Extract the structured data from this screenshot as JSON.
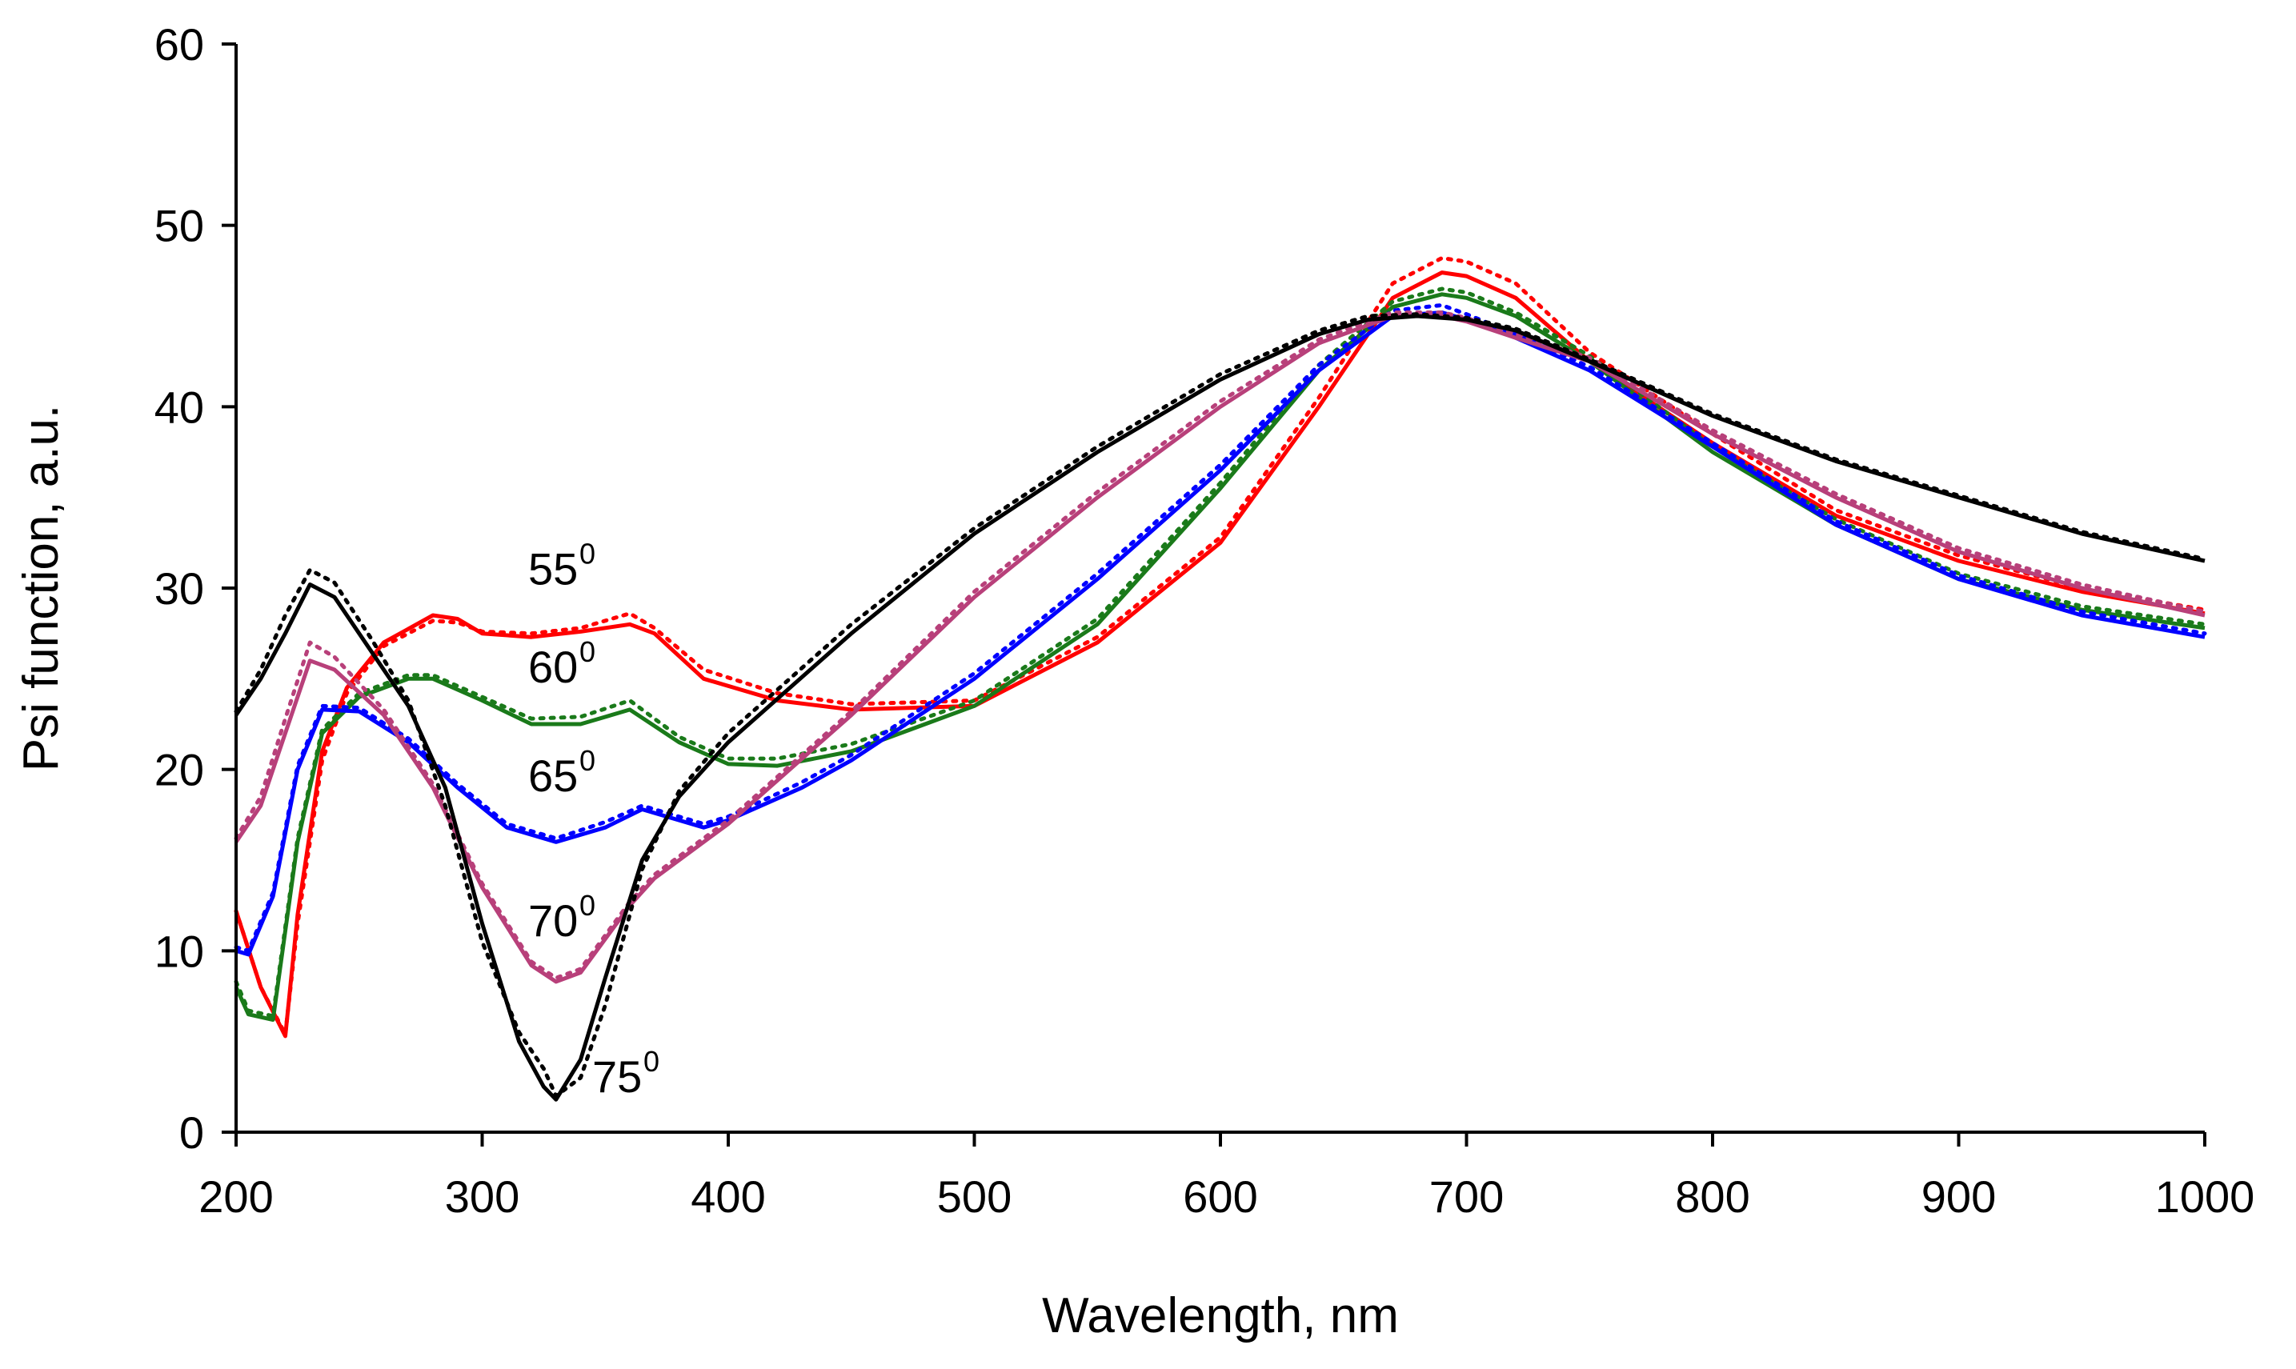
{
  "chart_data": {
    "type": "line",
    "title": "",
    "xlabel": "Wavelength, nm",
    "ylabel": "Psi function, a.u.",
    "xlim": [
      200,
      1000
    ],
    "ylim": [
      0,
      60
    ],
    "xticks": [
      200,
      300,
      400,
      500,
      600,
      700,
      800,
      900,
      1000
    ],
    "yticks": [
      0,
      10,
      20,
      30,
      40,
      50,
      60
    ],
    "grid": false,
    "legend": "none",
    "series": [
      {
        "name": "55°",
        "label": "55",
        "sup": "0",
        "color": "#ff0000",
        "x": [
          200,
          210,
          220,
          225,
          235,
          245,
          260,
          280,
          290,
          300,
          320,
          340,
          360,
          370,
          390,
          420,
          450,
          500,
          550,
          600,
          640,
          670,
          690,
          700,
          720,
          750,
          800,
          850,
          900,
          950,
          1000
        ],
        "measured": [
          12.2,
          8,
          5.3,
          12,
          21,
          24.5,
          27,
          28.5,
          28.3,
          27.5,
          27.3,
          27.6,
          28,
          27.5,
          25,
          23.8,
          23.3,
          23.5,
          27,
          32.5,
          40,
          46,
          47.4,
          47.2,
          46,
          42.5,
          38,
          34,
          31.5,
          29.8,
          28.6
        ],
        "model": [
          12.2,
          8,
          5.4,
          11.5,
          20.5,
          24.2,
          26.8,
          28.2,
          28.1,
          27.6,
          27.5,
          27.8,
          28.6,
          27.8,
          25.5,
          24.2,
          23.6,
          23.8,
          27.3,
          32.8,
          40.5,
          46.8,
          48.2,
          48,
          46.8,
          43,
          38.5,
          34.3,
          31.8,
          30,
          28.8
        ]
      },
      {
        "name": "60°",
        "label": "60",
        "sup": "0",
        "color": "#1a7a1a",
        "x": [
          200,
          205,
          215,
          225,
          235,
          250,
          270,
          280,
          300,
          320,
          340,
          360,
          380,
          400,
          420,
          450,
          500,
          550,
          600,
          640,
          670,
          690,
          700,
          720,
          750,
          800,
          850,
          900,
          950,
          1000
        ],
        "measured": [
          8,
          6.5,
          6.2,
          16,
          22,
          24,
          25,
          25,
          23.8,
          22.5,
          22.5,
          23.3,
          21.5,
          20.3,
          20.2,
          21,
          23.5,
          28,
          35.5,
          42,
          45.5,
          46.2,
          46,
          45,
          42.5,
          37.5,
          33.5,
          30.5,
          28.8,
          27.8
        ],
        "model": [
          8.3,
          6.7,
          6.4,
          16.2,
          22.2,
          24.2,
          25.2,
          25.2,
          24,
          22.8,
          22.9,
          23.8,
          21.8,
          20.6,
          20.6,
          21.4,
          23.8,
          28.3,
          35.8,
          42.3,
          45.8,
          46.5,
          46.3,
          45.2,
          42.8,
          37.8,
          33.8,
          30.8,
          29,
          28
        ]
      },
      {
        "name": "65°",
        "label": "65",
        "sup": "0",
        "color": "#0000ff",
        "x": [
          200,
          205,
          215,
          225,
          235,
          250,
          270,
          290,
          310,
          330,
          350,
          365,
          380,
          390,
          400,
          430,
          450,
          500,
          550,
          600,
          640,
          670,
          690,
          700,
          720,
          750,
          800,
          850,
          900,
          950,
          1000
        ],
        "measured": [
          10,
          9.8,
          13,
          20,
          23.3,
          23.2,
          21.5,
          19,
          16.8,
          16,
          16.8,
          17.8,
          17.2,
          16.8,
          17.2,
          19,
          20.5,
          25,
          30.5,
          36.5,
          42,
          45,
          45.2,
          44.8,
          43.8,
          42,
          37.8,
          33.5,
          30.5,
          28.5,
          27.3
        ],
        "model": [
          10.2,
          10,
          13.2,
          20.2,
          23.5,
          23.4,
          21.7,
          19.2,
          17,
          16.2,
          17.1,
          18,
          17.4,
          17,
          17.4,
          19.3,
          20.8,
          25.3,
          30.8,
          36.8,
          42.3,
          45.3,
          45.6,
          45.1,
          44,
          42.2,
          38,
          33.7,
          30.7,
          28.7,
          27.5
        ]
      },
      {
        "name": "70°",
        "label": "70",
        "sup": "0",
        "color": "#b8407a",
        "x": [
          200,
          210,
          220,
          230,
          240,
          260,
          280,
          300,
          320,
          330,
          340,
          360,
          370,
          400,
          450,
          500,
          550,
          600,
          640,
          670,
          690,
          700,
          720,
          750,
          800,
          850,
          900,
          950,
          1000
        ],
        "measured": [
          16,
          18,
          22,
          26,
          25.5,
          23,
          19,
          13.5,
          9.2,
          8.3,
          8.8,
          12.5,
          14,
          17,
          23,
          29.5,
          35,
          40,
          43.5,
          45,
          45,
          44.7,
          43.8,
          42.5,
          38.5,
          35,
          32,
          30,
          28.5
        ],
        "model": [
          16.2,
          18.5,
          22.8,
          27,
          26.2,
          23.3,
          19.2,
          13.7,
          9.4,
          8.5,
          9,
          12.7,
          14.2,
          17.2,
          23.2,
          29.8,
          35.3,
          40.3,
          43.7,
          45.2,
          45.2,
          44.9,
          44,
          42.7,
          38.7,
          35.2,
          32.2,
          30.2,
          28.7
        ]
      },
      {
        "name": "75°",
        "label": "75",
        "sup": "0",
        "color": "#000000",
        "x": [
          200,
          210,
          220,
          230,
          240,
          255,
          270,
          285,
          300,
          315,
          325,
          330,
          340,
          350,
          365,
          380,
          400,
          450,
          500,
          550,
          600,
          640,
          660,
          680,
          700,
          720,
          750,
          800,
          850,
          900,
          950,
          1000
        ],
        "measured": [
          23,
          25,
          27.5,
          30.2,
          29.5,
          26.5,
          23.5,
          19,
          11.5,
          5,
          2.5,
          1.8,
          4,
          8.5,
          15,
          18.5,
          21.5,
          27.5,
          33,
          37.5,
          41.5,
          44,
          44.8,
          45,
          44.8,
          44.2,
          42.5,
          39.5,
          37,
          35,
          33,
          31.5
        ],
        "model": [
          23.2,
          25.5,
          28.5,
          31,
          30.3,
          27.2,
          23.8,
          18,
          10.5,
          5.5,
          3.5,
          2,
          3,
          7,
          14.5,
          18.8,
          22,
          28,
          33.3,
          37.8,
          41.8,
          44.2,
          45,
          45.1,
          44.9,
          44.3,
          42.6,
          39.6,
          37.1,
          35.1,
          33.1,
          31.6
        ]
      }
    ]
  }
}
